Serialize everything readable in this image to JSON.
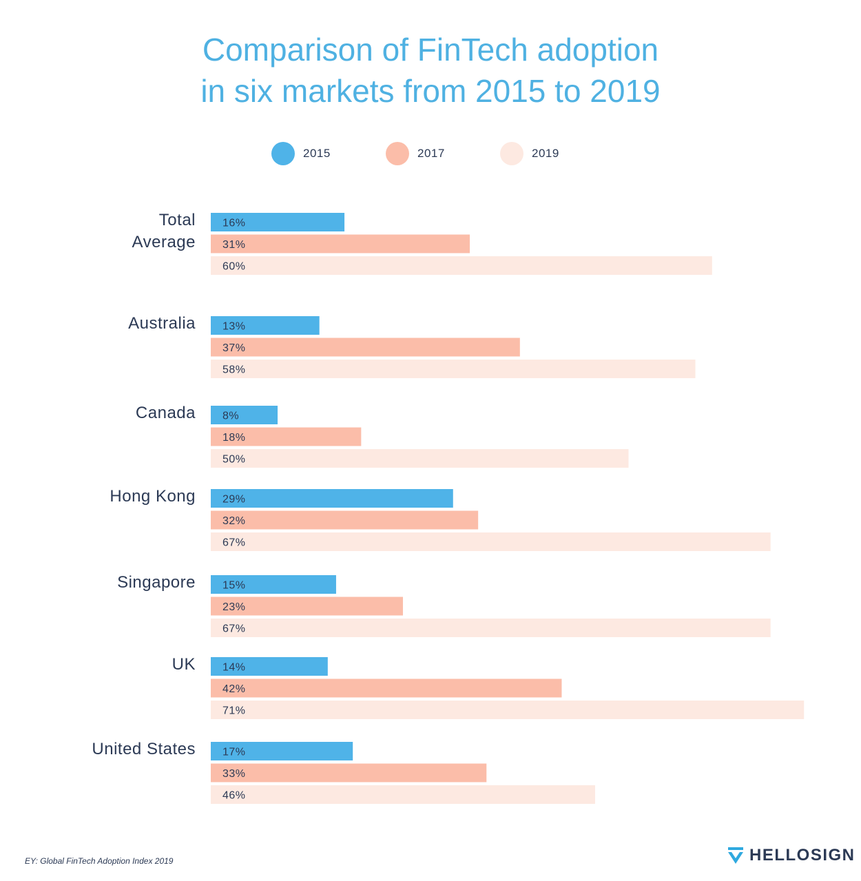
{
  "chart_data": {
    "type": "bar",
    "orientation": "horizontal",
    "title": "Comparison of FinTech adoption in six markets from 2015 to 2019",
    "title_lines": [
      "Comparison of FinTech adoption",
      "in six markets from 2015 to 2019"
    ],
    "categories": [
      [
        "Total",
        "Average"
      ],
      [
        "Australia"
      ],
      [
        "Canada"
      ],
      [
        "Hong Kong"
      ],
      [
        "Singapore"
      ],
      [
        "UK"
      ],
      [
        "United States"
      ]
    ],
    "series": [
      {
        "name": "2015",
        "color": "#4fb3e8",
        "values": [
          16,
          13,
          8,
          29,
          15,
          14,
          17
        ]
      },
      {
        "name": "2017",
        "color": "#fbbda9",
        "values": [
          31,
          37,
          18,
          32,
          23,
          42,
          33
        ]
      },
      {
        "name": "2019",
        "color": "#fde9e1",
        "values": [
          60,
          58,
          50,
          67,
          67,
          71,
          46
        ]
      }
    ],
    "value_suffix": "%",
    "xlim": [
      0,
      71
    ],
    "legend_position": "top-center",
    "grid": false
  },
  "source": "EY: Global FinTech Adoption Index 2019",
  "logo": {
    "text": "HELLOSIGN",
    "icon": "hellosign-check-icon",
    "color": "#2fa9df"
  },
  "colors": {
    "title": "#4fb1e2",
    "text": "#2c3a55"
  }
}
